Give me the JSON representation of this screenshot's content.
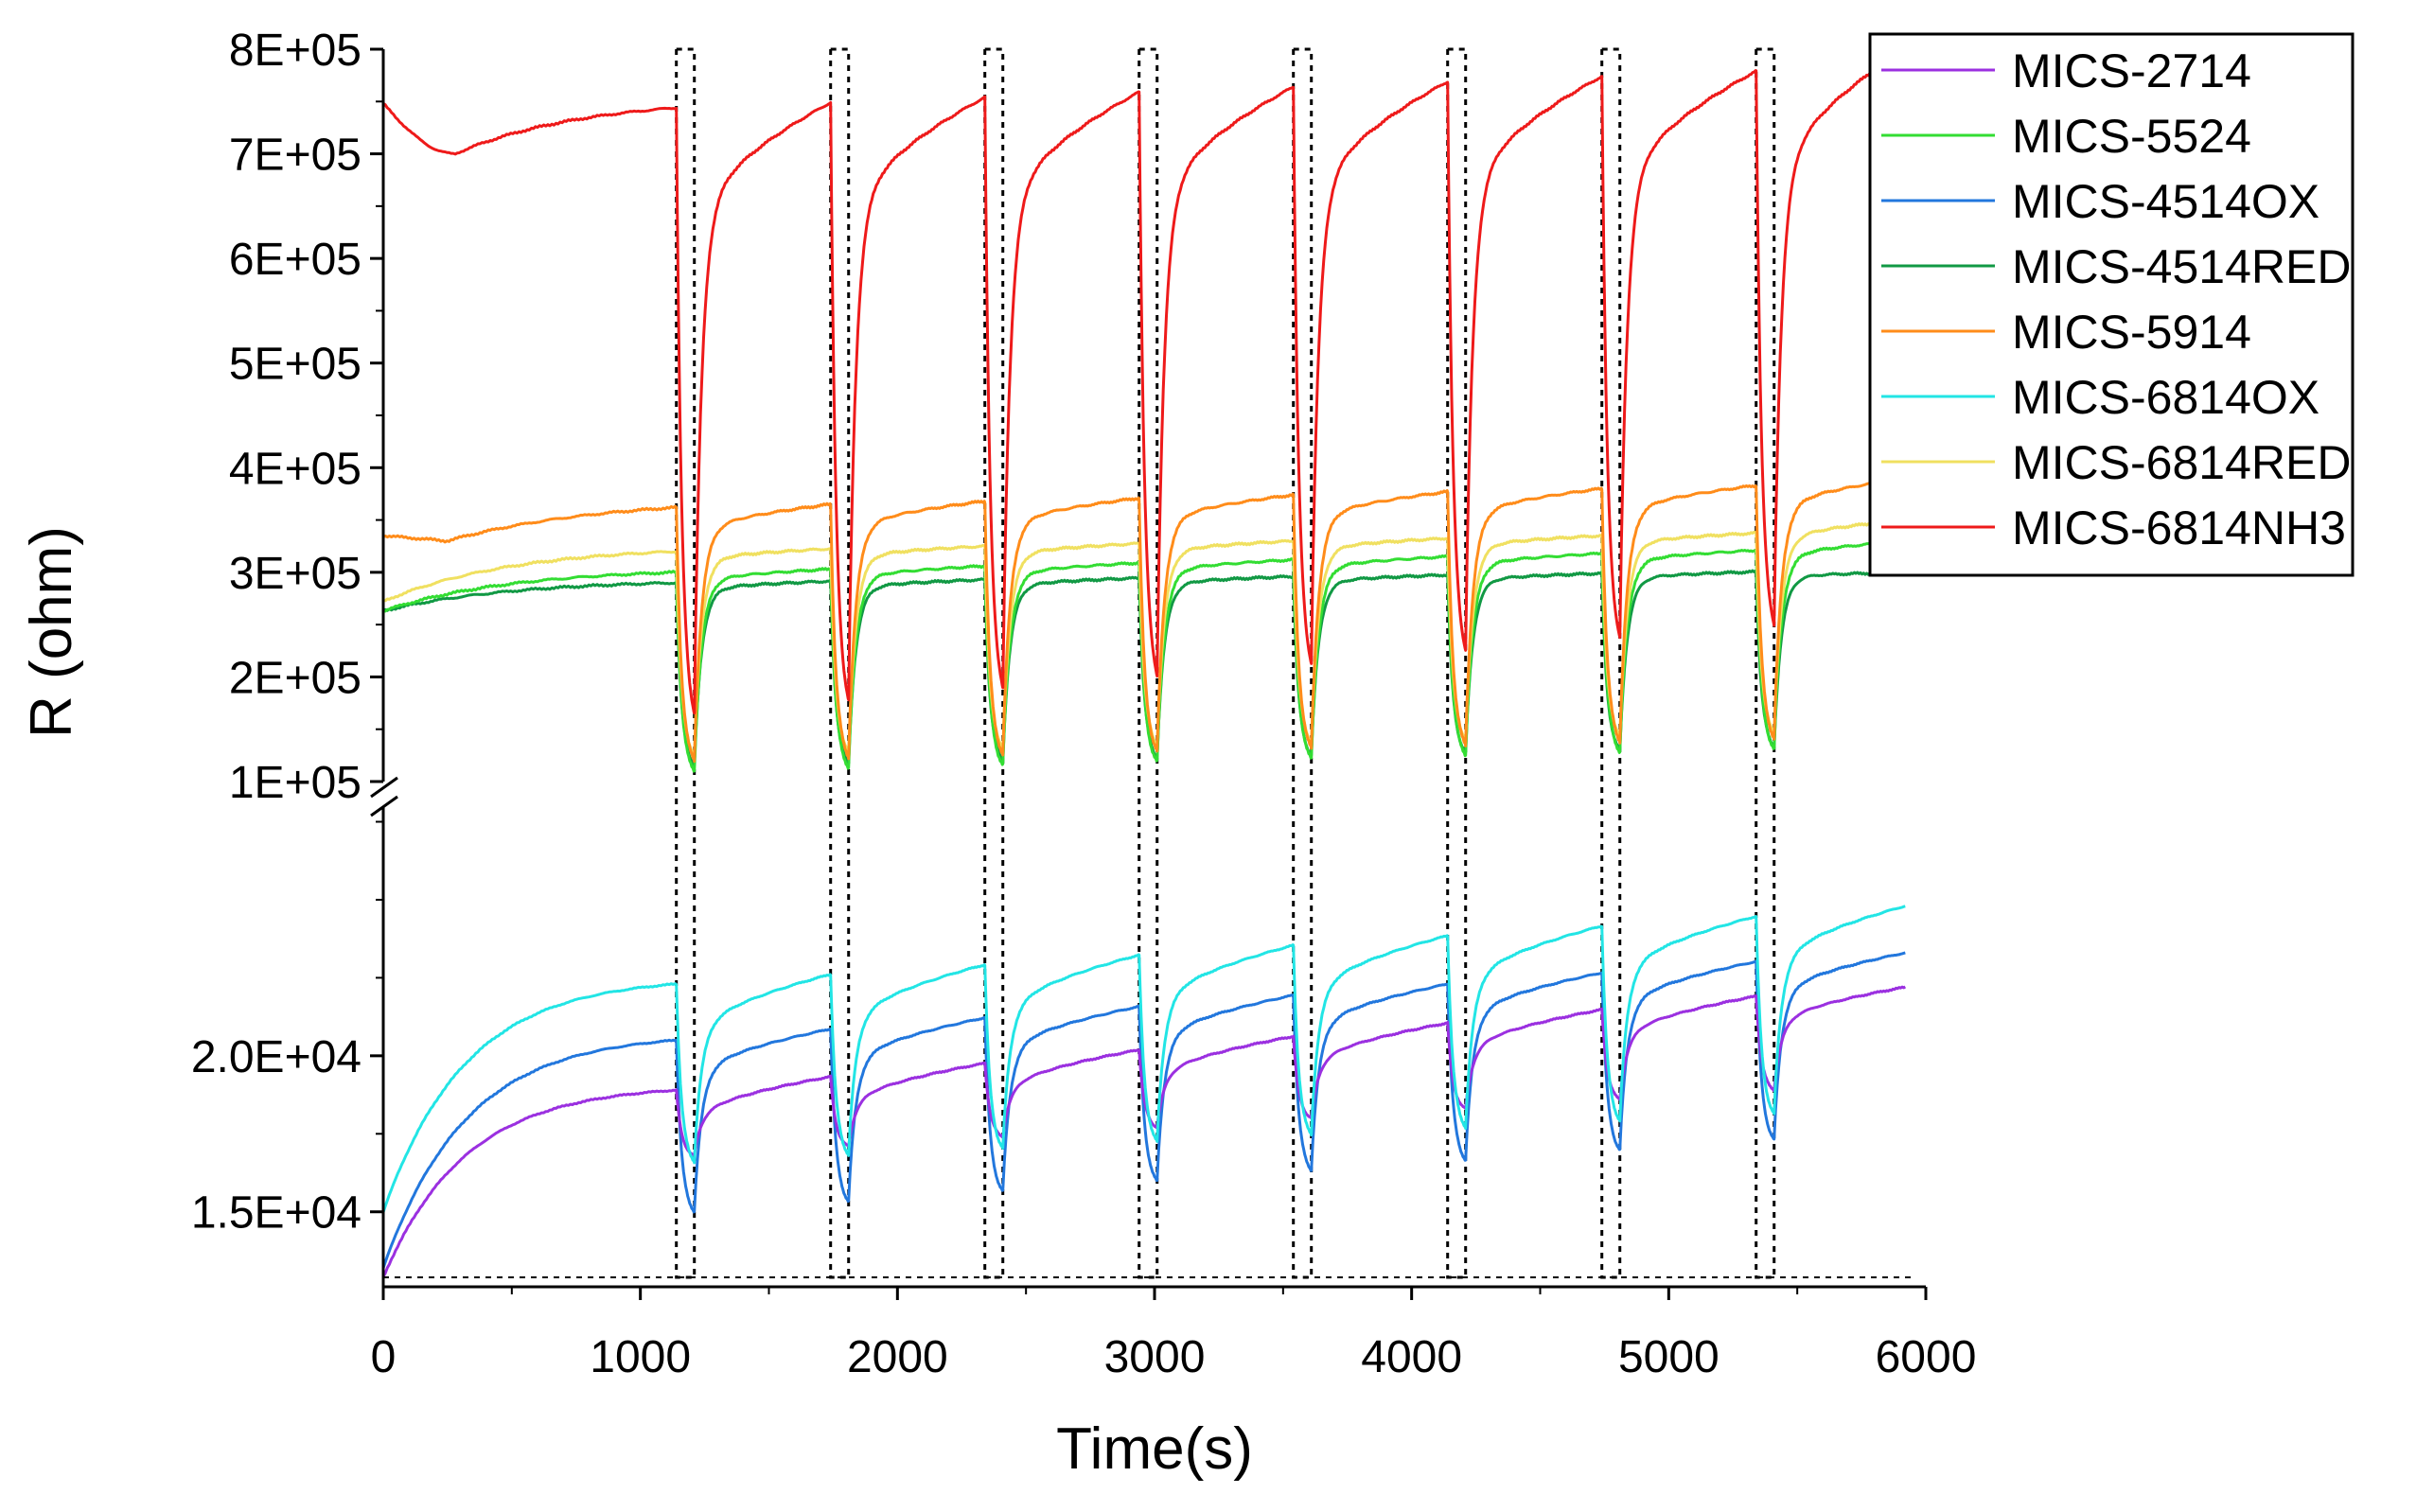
{
  "chart_data": {
    "type": "line",
    "title": "",
    "xlabel": "Time(s)",
    "ylabel": "R (ohm)",
    "xlim": [
      0,
      6000
    ],
    "x_ticks": [
      0,
      1000,
      2000,
      3000,
      4000,
      5000,
      6000
    ],
    "x_tick_labels": [
      "0",
      "1000",
      "2000",
      "3000",
      "4000",
      "5000",
      "6000"
    ],
    "y_axis_break": true,
    "upper_ylim": [
      100000,
      800000
    ],
    "upper_y_ticks": [
      100000,
      200000,
      300000,
      400000,
      500000,
      600000,
      700000,
      800000
    ],
    "upper_y_tick_labels": [
      "1E+05",
      "2E+05",
      "3E+05",
      "4E+05",
      "5E+05",
      "6E+05",
      "7E+05",
      "8E+05"
    ],
    "lower_ylim": [
      12900,
      28000
    ],
    "lower_y_ticks": [
      15000,
      20000
    ],
    "lower_y_tick_labels": [
      "1.5E+04",
      "2.0E+04"
    ],
    "gas_exposure_windows": [
      [
        1140,
        1210
      ],
      [
        1740,
        1810
      ],
      [
        2340,
        2410
      ],
      [
        2940,
        3010
      ],
      [
        3540,
        3610
      ],
      [
        4140,
        4210
      ],
      [
        4740,
        4810
      ],
      [
        5340,
        5410
      ]
    ],
    "legend_position": "top-right",
    "series": [
      {
        "name": "MICS-2714",
        "color": "#9B30E0",
        "panel": "lower",
        "start": 12900,
        "first_end": 18900,
        "end_increment": 430,
        "min_first": 16800,
        "min_increment": 300,
        "recovered": 17900,
        "recovered_increment": 420,
        "final": 22200
      },
      {
        "name": "MICS-5524",
        "color": "#33DD33",
        "panel": "upper",
        "start": 263000,
        "first_end": 300000,
        "end_increment": 3000,
        "min_first": 110000,
        "min_increment": 3000,
        "recovered": 290000,
        "recovered_increment": 3000,
        "final": 330000
      },
      {
        "name": "MICS-4514OX",
        "color": "#2277DD",
        "panel": "lower",
        "start": 13200,
        "first_end": 20500,
        "end_increment": 360,
        "min_first": 15000,
        "min_increment": 330,
        "recovered": 19200,
        "recovered_increment": 360,
        "final": 23300
      },
      {
        "name": "MICS-4514RED",
        "color": "#119944",
        "panel": "upper",
        "start": 263000,
        "first_end": 290000,
        "end_increment": 1500,
        "min_first": 115000,
        "min_increment": 2500,
        "recovered": 282000,
        "recovered_increment": 1800,
        "final": 300000
      },
      {
        "name": "MICS-5914",
        "color": "#FF8C1A",
        "panel": "upper",
        "start": 335000,
        "first_end": 362000,
        "end_increment": 3000,
        "min_first": 120000,
        "min_increment": 3000,
        "recovered": 335000,
        "recovered_increment": 3000,
        "final": 390000
      },
      {
        "name": "MICS-6814OX",
        "color": "#22E5E5",
        "panel": "lower",
        "start": 15000,
        "first_end": 22300,
        "end_increment": 310,
        "min_first": 16600,
        "min_increment": 220,
        "recovered": 20500,
        "recovered_increment": 310,
        "final": 24800
      },
      {
        "name": "MICS-6814RED",
        "color": "#F0E060",
        "panel": "upper",
        "start": 272000,
        "first_end": 320000,
        "end_increment": 2500,
        "min_first": 125000,
        "min_increment": 3000,
        "recovered": 310000,
        "recovered_increment": 2500,
        "final": 350000
      },
      {
        "name": "MICS-6814NH3",
        "color": "#EE1A1A",
        "panel": "upper",
        "start": 748000,
        "first_end": 744000,
        "end_increment": 5000,
        "min_first": 165000,
        "min_increment": 12000,
        "recovered": 620000,
        "recovered_increment": 5000,
        "final": 800000
      }
    ]
  }
}
